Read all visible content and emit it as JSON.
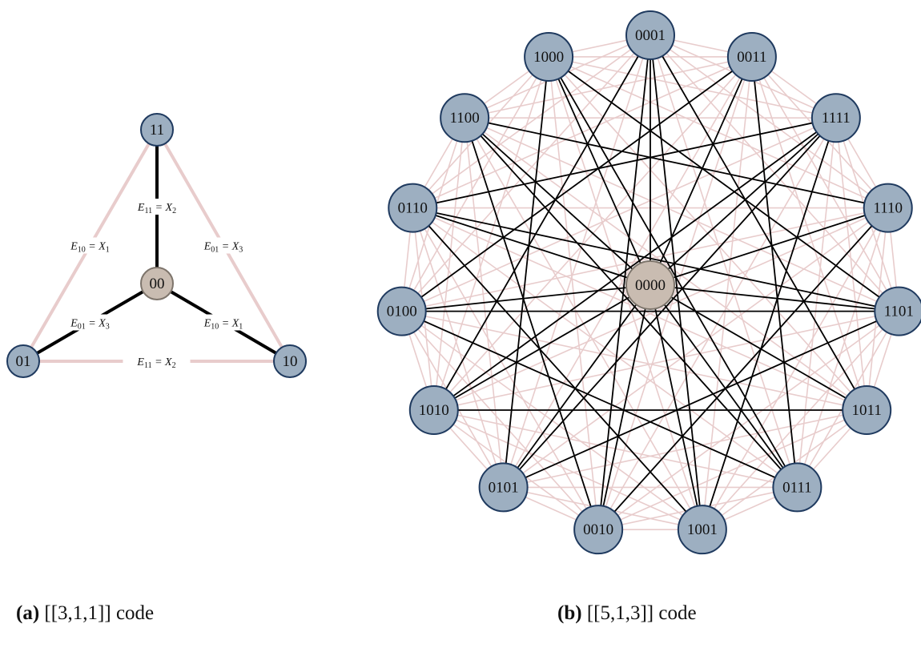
{
  "colors": {
    "node_fill": "#9dafc1",
    "node_stroke": "#1f3a5f",
    "center_fill": "#c9bcb1",
    "center_stroke": "#7d746b",
    "primary_edge": "#000000",
    "secondary_edge": "#e8cccc"
  },
  "panel_a": {
    "caption_letter": "(a)",
    "caption_text": "[[3,1,1]] code",
    "center": "00",
    "nodes": [
      "11",
      "01",
      "10"
    ],
    "spoke_labels": [
      {
        "node": "11",
        "e_sub": "11",
        "x_sub": "2"
      },
      {
        "node": "01",
        "e_sub": "01",
        "x_sub": "3"
      },
      {
        "node": "10",
        "e_sub": "10",
        "x_sub": "1"
      }
    ],
    "ring_labels": [
      {
        "from": "11",
        "to": "01",
        "e_sub": "10",
        "x_sub": "1"
      },
      {
        "from": "11",
        "to": "10",
        "e_sub": "01",
        "x_sub": "3"
      },
      {
        "from": "01",
        "to": "10",
        "e_sub": "11",
        "x_sub": "2"
      }
    ]
  },
  "panel_b": {
    "caption_letter": "(b)",
    "caption_text": "[[5,1,3]] code",
    "center": "0000",
    "nodes": [
      "0001",
      "0011",
      "1111",
      "1110",
      "1101",
      "1011",
      "0111",
      "1001",
      "0010",
      "0101",
      "1010",
      "0100",
      "0110",
      "1100",
      "1000"
    ]
  }
}
